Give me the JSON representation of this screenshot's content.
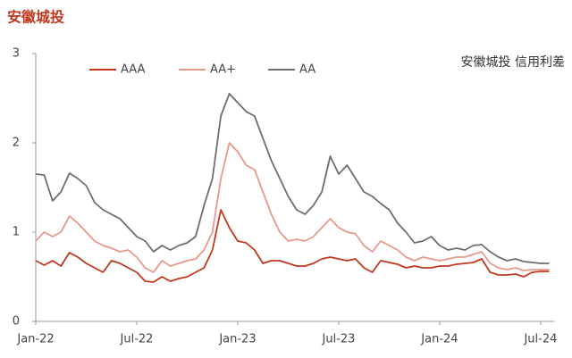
{
  "chart_data": {
    "type": "line",
    "title": "安徽城投",
    "annotation": "安徽城投 信用利差",
    "x": [
      0,
      0.5,
      1,
      1.5,
      2,
      2.5,
      3,
      3.5,
      4,
      4.5,
      5,
      5.5,
      6,
      6.5,
      7,
      7.5,
      8,
      8.5,
      9,
      9.5,
      10,
      10.5,
      11,
      11.5,
      12,
      12.5,
      13,
      13.5,
      14,
      14.5,
      15,
      15.5,
      16,
      16.5,
      17,
      17.5,
      18,
      18.5,
      19,
      19.5,
      20,
      20.5,
      21,
      21.5,
      22,
      22.5,
      23,
      23.5,
      24,
      24.5,
      25,
      25.5,
      26,
      26.5,
      27,
      27.5,
      28,
      28.5,
      29,
      29.5,
      30,
      30.5
    ],
    "series": [
      {
        "name": "AAA",
        "color": "#c0391f",
        "values": [
          0.68,
          0.63,
          0.68,
          0.62,
          0.77,
          0.72,
          0.65,
          0.6,
          0.55,
          0.68,
          0.65,
          0.6,
          0.55,
          0.45,
          0.44,
          0.5,
          0.45,
          0.48,
          0.5,
          0.55,
          0.6,
          0.8,
          1.25,
          1.05,
          0.9,
          0.88,
          0.8,
          0.65,
          0.68,
          0.68,
          0.65,
          0.62,
          0.62,
          0.65,
          0.7,
          0.72,
          0.7,
          0.68,
          0.7,
          0.6,
          0.55,
          0.68,
          0.66,
          0.64,
          0.6,
          0.62,
          0.6,
          0.6,
          0.62,
          0.62,
          0.64,
          0.65,
          0.66,
          0.7,
          0.55,
          0.52,
          0.52,
          0.53,
          0.5,
          0.55,
          0.56,
          0.56
        ]
      },
      {
        "name": "AA+",
        "color": "#e8998a",
        "values": [
          0.9,
          1.0,
          0.95,
          1.0,
          1.18,
          1.1,
          1.0,
          0.9,
          0.85,
          0.82,
          0.78,
          0.8,
          0.72,
          0.6,
          0.55,
          0.68,
          0.62,
          0.65,
          0.68,
          0.7,
          0.8,
          1.0,
          1.6,
          2.0,
          1.9,
          1.75,
          1.7,
          1.45,
          1.2,
          1.0,
          0.9,
          0.92,
          0.9,
          0.95,
          1.05,
          1.15,
          1.05,
          1.0,
          0.98,
          0.85,
          0.78,
          0.9,
          0.85,
          0.8,
          0.72,
          0.68,
          0.72,
          0.7,
          0.68,
          0.7,
          0.72,
          0.72,
          0.75,
          0.78,
          0.65,
          0.6,
          0.58,
          0.6,
          0.57,
          0.58,
          0.58,
          0.58
        ]
      },
      {
        "name": "AA",
        "color": "#6e6e6e",
        "values": [
          1.65,
          1.64,
          1.35,
          1.45,
          1.66,
          1.6,
          1.52,
          1.33,
          1.25,
          1.2,
          1.15,
          1.05,
          0.95,
          0.9,
          0.78,
          0.85,
          0.8,
          0.85,
          0.88,
          0.95,
          1.3,
          1.6,
          2.3,
          2.55,
          2.45,
          2.35,
          2.3,
          2.05,
          1.8,
          1.6,
          1.4,
          1.25,
          1.2,
          1.3,
          1.45,
          1.85,
          1.65,
          1.75,
          1.6,
          1.45,
          1.4,
          1.32,
          1.25,
          1.1,
          1.0,
          0.88,
          0.9,
          0.95,
          0.85,
          0.8,
          0.82,
          0.8,
          0.85,
          0.86,
          0.78,
          0.72,
          0.68,
          0.7,
          0.67,
          0.66,
          0.65,
          0.65
        ]
      }
    ],
    "xlim": [
      0,
      30.8
    ],
    "xticks": [
      {
        "value": 0,
        "label": "Jan-22"
      },
      {
        "value": 6,
        "label": "Jul-22"
      },
      {
        "value": 12,
        "label": "Jan-23"
      },
      {
        "value": 18,
        "label": "Jul-23"
      },
      {
        "value": 24,
        "label": "Jan-24"
      },
      {
        "value": 30,
        "label": "Jul-24"
      }
    ],
    "ylim": [
      0,
      3
    ],
    "yticks": [
      0,
      1,
      2,
      3
    ],
    "grid": false,
    "legend": "top"
  }
}
